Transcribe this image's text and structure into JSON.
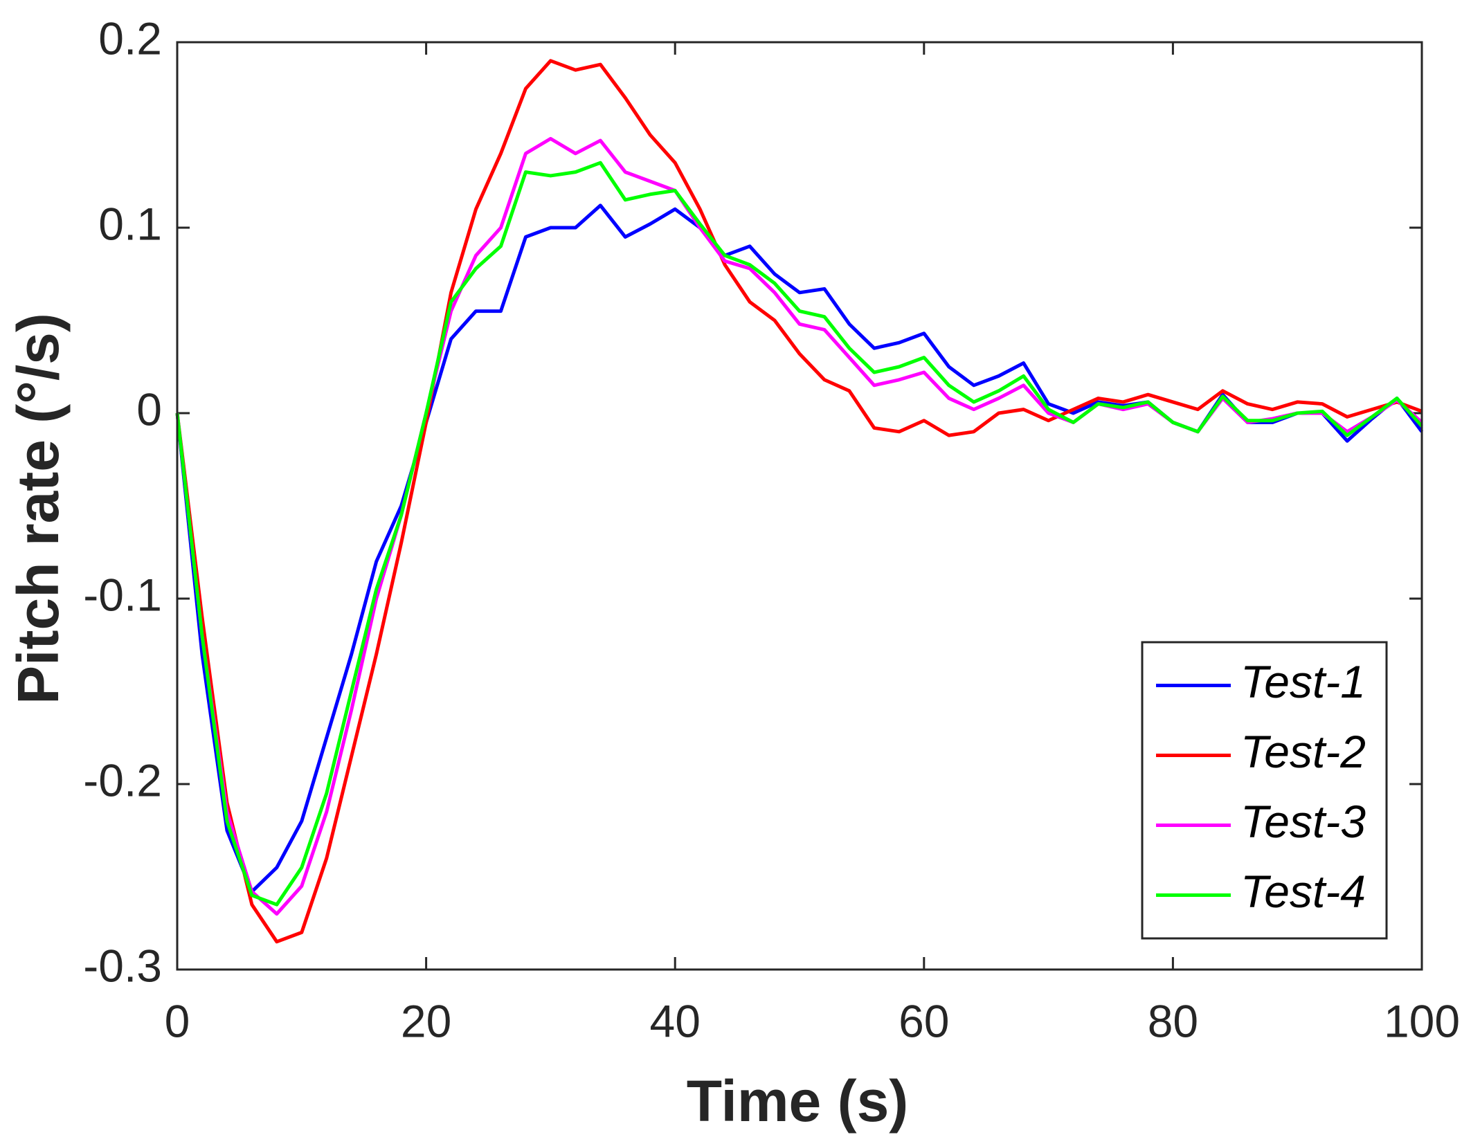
{
  "chart_data": {
    "type": "line",
    "xlabel": "Time (s)",
    "ylabel": "Pitch rate (°/s)",
    "xlim": [
      0,
      100
    ],
    "ylim": [
      -0.3,
      0.2
    ],
    "xticks": [
      0,
      20,
      40,
      60,
      80,
      100
    ],
    "yticks": [
      -0.3,
      -0.2,
      -0.1,
      0,
      0.1,
      0.2
    ],
    "legend": "lower right",
    "x": [
      0,
      2,
      4,
      6,
      8,
      10,
      12,
      14,
      16,
      18,
      20,
      22,
      24,
      26,
      28,
      30,
      32,
      34,
      36,
      38,
      40,
      42,
      44,
      46,
      48,
      50,
      52,
      54,
      56,
      58,
      60,
      62,
      64,
      66,
      68,
      70,
      72,
      74,
      76,
      78,
      80,
      82,
      84,
      86,
      88,
      90,
      92,
      94,
      96,
      98,
      100
    ],
    "series": [
      {
        "name": "Test-1",
        "color": "#0000ff",
        "values": [
          0,
          -0.13,
          -0.225,
          -0.258,
          -0.245,
          -0.22,
          -0.175,
          -0.13,
          -0.08,
          -0.05,
          -0.005,
          0.04,
          0.055,
          0.055,
          0.095,
          0.1,
          0.1,
          0.112,
          0.095,
          0.102,
          0.11,
          0.1,
          0.085,
          0.09,
          0.075,
          0.065,
          0.067,
          0.048,
          0.035,
          0.038,
          0.043,
          0.025,
          0.015,
          0.02,
          0.027,
          0.005,
          0,
          0.006,
          0.004,
          0.006,
          -0.005,
          -0.01,
          0.01,
          -0.005,
          -0.005,
          0,
          0,
          -0.015,
          -0.003,
          0.008,
          -0.01
        ]
      },
      {
        "name": "Test-2",
        "color": "#ff0000",
        "values": [
          0,
          -0.11,
          -0.21,
          -0.265,
          -0.285,
          -0.28,
          -0.24,
          -0.185,
          -0.13,
          -0.07,
          -0.005,
          0.065,
          0.11,
          0.14,
          0.175,
          0.19,
          0.185,
          0.188,
          0.17,
          0.15,
          0.135,
          0.11,
          0.08,
          0.06,
          0.05,
          0.032,
          0.018,
          0.012,
          -0.008,
          -0.01,
          -0.004,
          -0.012,
          -0.01,
          0,
          0.002,
          -0.004,
          0.002,
          0.008,
          0.006,
          0.01,
          0.006,
          0.002,
          0.012,
          0.005,
          0.002,
          0.006,
          0.005,
          -0.002,
          0.002,
          0.006,
          0.001
        ]
      },
      {
        "name": "Test-3",
        "color": "#ff00ff",
        "values": [
          0,
          -0.12,
          -0.215,
          -0.258,
          -0.27,
          -0.255,
          -0.215,
          -0.16,
          -0.1,
          -0.055,
          0,
          0.055,
          0.085,
          0.1,
          0.14,
          0.148,
          0.14,
          0.147,
          0.13,
          0.125,
          0.12,
          0.1,
          0.082,
          0.078,
          0.065,
          0.048,
          0.045,
          0.03,
          0.015,
          0.018,
          0.022,
          0.008,
          0.002,
          0.008,
          0.015,
          0,
          -0.005,
          0.005,
          0.002,
          0.005,
          -0.005,
          -0.01,
          0.008,
          -0.005,
          -0.003,
          0,
          0,
          -0.01,
          -0.002,
          0.007,
          -0.005
        ]
      },
      {
        "name": "Test-4",
        "color": "#00ff00",
        "values": [
          0,
          -0.12,
          -0.22,
          -0.26,
          -0.265,
          -0.245,
          -0.205,
          -0.15,
          -0.095,
          -0.055,
          0,
          0.06,
          0.078,
          0.09,
          0.13,
          0.128,
          0.13,
          0.135,
          0.115,
          0.118,
          0.12,
          0.102,
          0.085,
          0.08,
          0.07,
          0.055,
          0.052,
          0.035,
          0.022,
          0.025,
          0.03,
          0.015,
          0.006,
          0.012,
          0.02,
          0.002,
          -0.005,
          0.005,
          0.003,
          0.006,
          -0.005,
          -0.01,
          0.009,
          -0.004,
          -0.004,
          0,
          0.001,
          -0.012,
          -0.002,
          0.008,
          -0.007
        ]
      }
    ]
  }
}
